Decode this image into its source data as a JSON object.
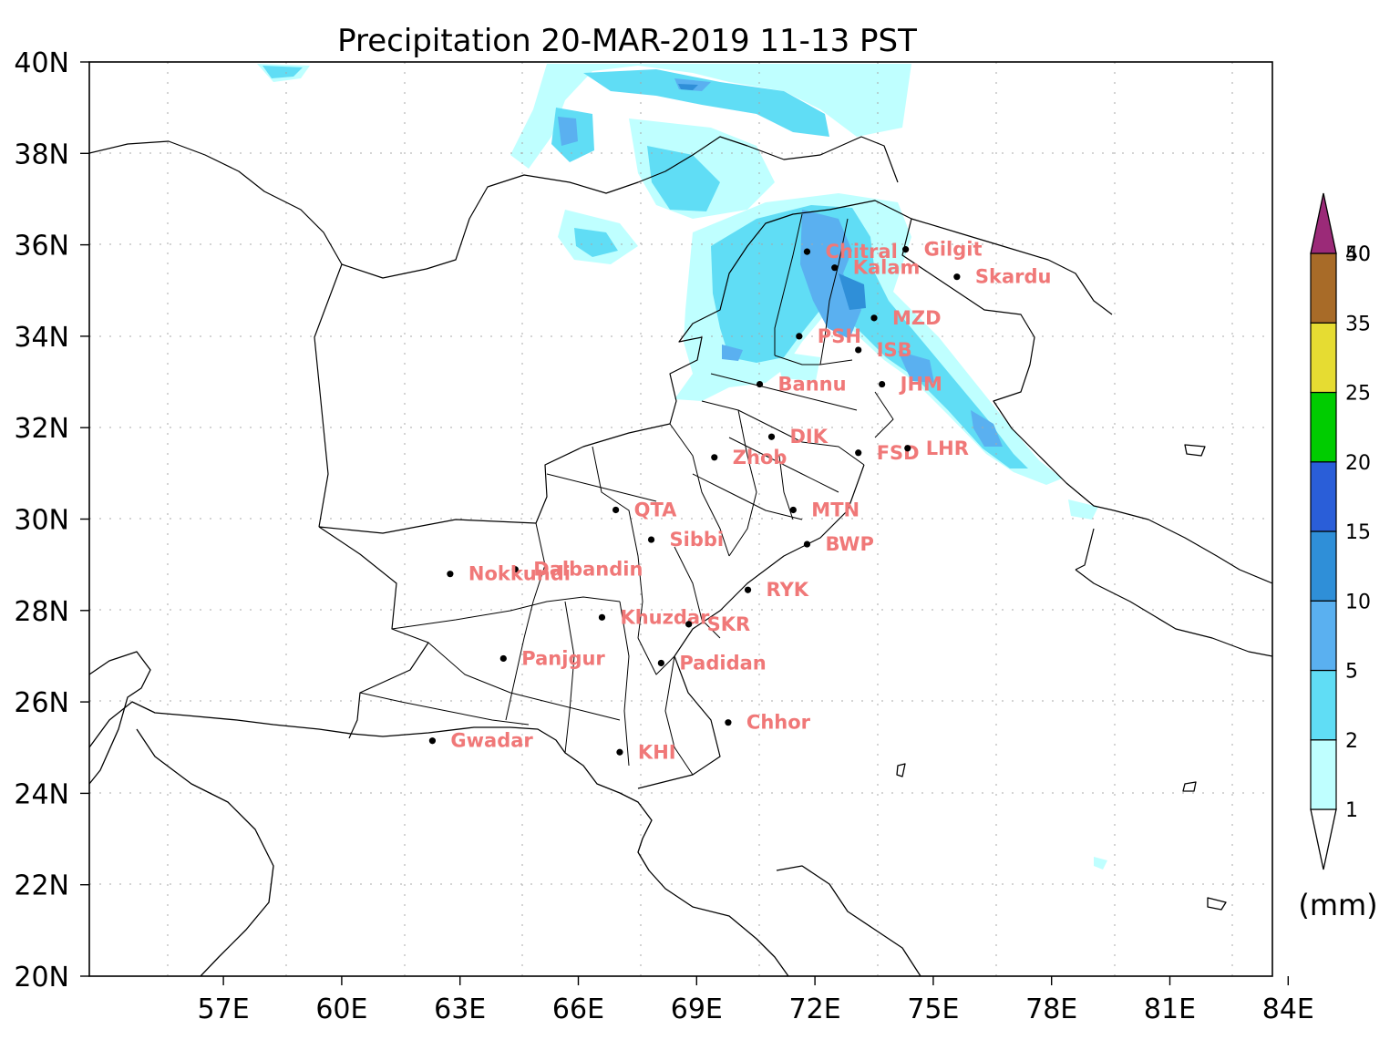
{
  "title": "Precipitation 20-MAR-2019 11-13 PST",
  "extent": {
    "lon_min": 53.6,
    "lon_max": 83.6,
    "lat_min": 20,
    "lat_max": 40
  },
  "lat_ticks": [
    {
      "value": 20,
      "label": "20N"
    },
    {
      "value": 22,
      "label": "22N"
    },
    {
      "value": 24,
      "label": "24N"
    },
    {
      "value": 26,
      "label": "26N"
    },
    {
      "value": 28,
      "label": "28N"
    },
    {
      "value": 30,
      "label": "30N"
    },
    {
      "value": 32,
      "label": "32N"
    },
    {
      "value": 34,
      "label": "34N"
    },
    {
      "value": 36,
      "label": "36N"
    },
    {
      "value": 38,
      "label": "38N"
    },
    {
      "value": 40,
      "label": "40N"
    }
  ],
  "lon_ticks": [
    {
      "value": 57,
      "label": "57E"
    },
    {
      "value": 60,
      "label": "60E"
    },
    {
      "value": 63,
      "label": "63E"
    },
    {
      "value": 66,
      "label": "66E"
    },
    {
      "value": 69,
      "label": "69E"
    },
    {
      "value": 72,
      "label": "72E"
    },
    {
      "value": 75,
      "label": "75E"
    },
    {
      "value": 78,
      "label": "78E"
    },
    {
      "value": 81,
      "label": "81E"
    },
    {
      "value": 84,
      "label": "84E"
    }
  ],
  "colors": {
    "label": "#f07878",
    "marker": "#000000",
    "precip_1": "#bfffff",
    "precip_2": "#60ddf5",
    "precip_5": "#5ab0f0",
    "precip_10": "#2f8fd8"
  },
  "cities": [
    {
      "name": "Chitral",
      "lon": 71.8,
      "lat": 35.85
    },
    {
      "name": "Gilgit",
      "lon": 74.3,
      "lat": 35.9
    },
    {
      "name": "Kalam",
      "lon": 72.5,
      "lat": 35.5
    },
    {
      "name": "Skardu",
      "lon": 75.6,
      "lat": 35.3
    },
    {
      "name": "MZD",
      "lon": 73.5,
      "lat": 34.4
    },
    {
      "name": "PSH",
      "lon": 71.6,
      "lat": 34.0
    },
    {
      "name": "ISB",
      "lon": 73.1,
      "lat": 33.7
    },
    {
      "name": "Bannu",
      "lon": 70.6,
      "lat": 32.95
    },
    {
      "name": "JHM",
      "lon": 73.7,
      "lat": 32.95
    },
    {
      "name": "DIK",
      "lon": 70.9,
      "lat": 31.8
    },
    {
      "name": "Zhob",
      "lon": 69.45,
      "lat": 31.35
    },
    {
      "name": "FSD",
      "lon": 73.1,
      "lat": 31.45
    },
    {
      "name": "LHR",
      "lon": 74.35,
      "lat": 31.55
    },
    {
      "name": "QTA",
      "lon": 66.95,
      "lat": 30.2
    },
    {
      "name": "Sibbi",
      "lon": 67.85,
      "lat": 29.55
    },
    {
      "name": "MTN",
      "lon": 71.45,
      "lat": 30.2
    },
    {
      "name": "BWP",
      "lon": 71.8,
      "lat": 29.45
    },
    {
      "name": "Dalbandin",
      "lon": 64.4,
      "lat": 28.9
    },
    {
      "name": "Nokkundi",
      "lon": 62.75,
      "lat": 28.8
    },
    {
      "name": "RYK",
      "lon": 70.3,
      "lat": 28.45
    },
    {
      "name": "Khuzdar",
      "lon": 66.6,
      "lat": 27.85
    },
    {
      "name": "SKR",
      "lon": 68.8,
      "lat": 27.7
    },
    {
      "name": "Panjgur",
      "lon": 64.1,
      "lat": 26.95
    },
    {
      "name": "Padidan",
      "lon": 68.1,
      "lat": 26.85
    },
    {
      "name": "Chhor",
      "lon": 69.8,
      "lat": 25.55
    },
    {
      "name": "Gwadar",
      "lon": 62.3,
      "lat": 25.15
    },
    {
      "name": "KHI",
      "lon": 67.05,
      "lat": 24.9
    }
  ],
  "colorbar": {
    "levels": [
      {
        "label": "1",
        "color": "#bfffff"
      },
      {
        "label": "2",
        "color": "#60ddf5"
      },
      {
        "label": "5",
        "color": "#5ab0f0"
      },
      {
        "label": "10",
        "color": "#2f8fd8"
      },
      {
        "label": "15",
        "color": "#2a5ed8"
      },
      {
        "label": "20",
        "color": "#00cc00"
      },
      {
        "label": "25",
        "color": "#e6dc32"
      },
      {
        "label": "35",
        "color": "#a86b28"
      },
      {
        "label": "40",
        "color": "#ff4040"
      },
      {
        "label": "50",
        "color": "#9b2a78"
      }
    ],
    "unit": "(mm)"
  }
}
